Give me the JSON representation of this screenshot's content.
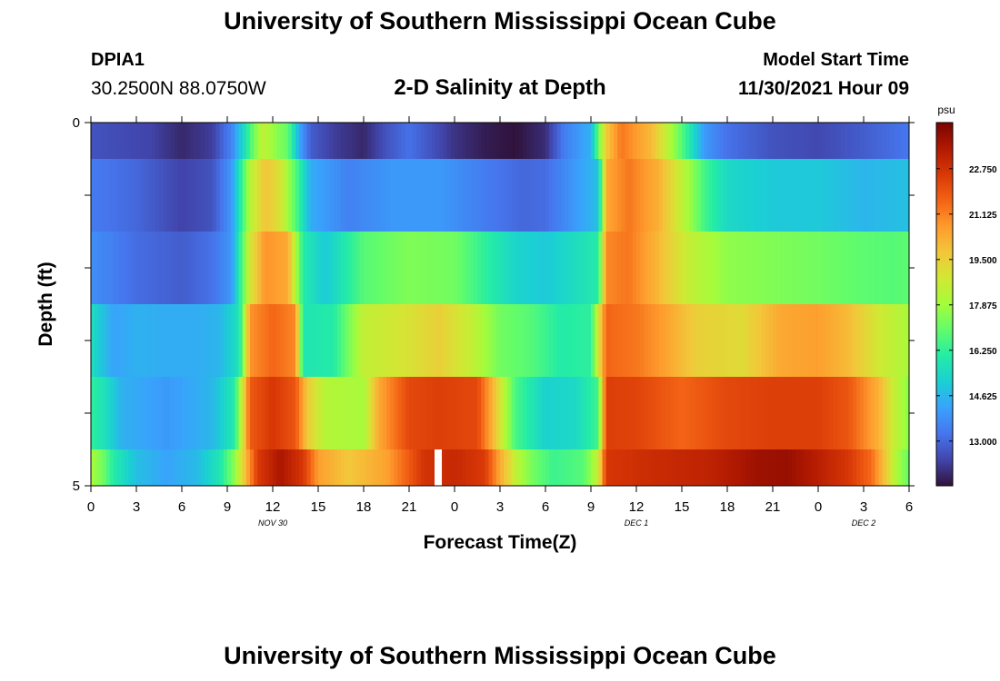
{
  "header": {
    "title": "University of Southern Mississippi Ocean Cube",
    "station": "DPIA1",
    "coords": "30.2500N  88.0750W",
    "subtitle": "2-D Salinity at Depth",
    "model_start_label": "Model Start Time",
    "model_start_value": "11/30/2021 Hour 09"
  },
  "footer": {
    "title": "University of Southern Mississippi Ocean Cube"
  },
  "chart_data": {
    "type": "heatmap",
    "title": "2-D Salinity at Depth",
    "xlabel": "Forecast Time(Z)",
    "ylabel": "Depth (ft)",
    "ylim": [
      0,
      5
    ],
    "y_ticks": [
      "0",
      "5"
    ],
    "x_tick_labels": [
      "0",
      "3",
      "6",
      "9",
      "12",
      "15",
      "18",
      "21",
      "0",
      "3",
      "6",
      "9",
      "12",
      "15",
      "18",
      "21",
      "0",
      "3",
      "6"
    ],
    "date_labels": [
      {
        "text": "NOV 30",
        "hour": 12
      },
      {
        "text": "DEC 1",
        "hour": 36
      },
      {
        "text": "DEC 2",
        "hour": 51
      }
    ],
    "x_range_hours": [
      0,
      54
    ],
    "colorbar": {
      "unit": "psu",
      "min": 11.4,
      "max": 24.4,
      "ticks": [
        "22.750",
        "21.125",
        "19.500",
        "17.875",
        "16.250",
        "14.625",
        "13.000"
      ],
      "colors": [
        "#30123b",
        "#4145ab",
        "#4675ed",
        "#39a2fc",
        "#1bcfd4",
        "#24eca6",
        "#61fc6c",
        "#a4fc3b",
        "#d1e834",
        "#f3c63a",
        "#fe9b2d",
        "#f36315",
        "#d93806",
        "#b11901",
        "#7a0402"
      ]
    },
    "layers": [
      "0 to 0.5 ft",
      "0.5 to 1.5 ft",
      "1.5 to 2.5 ft",
      "2.5 to 3.5 ft",
      "3.5 to 4.5 ft",
      "4.5 to 5 ft"
    ],
    "row_keyframes": [
      [
        [
          0,
          12.6
        ],
        [
          4,
          12.3
        ],
        [
          6,
          11.8
        ],
        [
          8,
          12.2
        ],
        [
          9.3,
          13.6
        ],
        [
          10.5,
          16.5
        ],
        [
          11.3,
          18.5
        ],
        [
          12.2,
          17.6
        ],
        [
          13,
          17.0
        ],
        [
          13.8,
          14.2
        ],
        [
          14.5,
          12.8
        ],
        [
          16,
          12.2
        ],
        [
          18,
          11.8
        ],
        [
          19.5,
          12.6
        ],
        [
          21,
          13.2
        ],
        [
          22.5,
          12.6
        ],
        [
          24,
          12.0
        ],
        [
          26,
          11.6
        ],
        [
          28,
          11.4
        ],
        [
          30,
          11.9
        ],
        [
          31.2,
          13.4
        ],
        [
          33,
          14.5
        ],
        [
          34,
          19.6
        ],
        [
          35,
          21.3
        ],
        [
          37,
          20.0
        ],
        [
          38,
          18.5
        ],
        [
          39.2,
          16.5
        ],
        [
          40.5,
          14.0
        ],
        [
          42,
          13.2
        ],
        [
          45,
          12.6
        ],
        [
          48,
          12.4
        ],
        [
          51,
          12.8
        ],
        [
          54,
          13.3
        ]
      ],
      [
        [
          0,
          13.4
        ],
        [
          3,
          13.0
        ],
        [
          6,
          12.3
        ],
        [
          8,
          12.6
        ],
        [
          9.3,
          14.0
        ],
        [
          10.5,
          18.2
        ],
        [
          11.5,
          19.8
        ],
        [
          12.5,
          19.0
        ],
        [
          13.5,
          16.8
        ],
        [
          14.5,
          14.4
        ],
        [
          17,
          13.5
        ],
        [
          20,
          14.0
        ],
        [
          23,
          14.0
        ],
        [
          26,
          13.4
        ],
        [
          28.5,
          13.0
        ],
        [
          30,
          13.1
        ],
        [
          31.5,
          13.8
        ],
        [
          33.5,
          14.8
        ],
        [
          34,
          20.4
        ],
        [
          35.5,
          21.3
        ],
        [
          37.5,
          20.2
        ],
        [
          39,
          18.5
        ],
        [
          40.5,
          16.5
        ],
        [
          42,
          15.4
        ],
        [
          45,
          15.0
        ],
        [
          48,
          15.0
        ],
        [
          51,
          14.6
        ],
        [
          54,
          14.8
        ]
      ],
      [
        [
          0,
          13.8
        ],
        [
          3,
          13.1
        ],
        [
          6,
          12.8
        ],
        [
          8,
          13.2
        ],
        [
          9.3,
          14.0
        ],
        [
          10.5,
          18.8
        ],
        [
          11.5,
          20.8
        ],
        [
          13,
          20.4
        ],
        [
          14,
          16.0
        ],
        [
          15.5,
          15.0
        ],
        [
          18,
          16.8
        ],
        [
          21,
          17.4
        ],
        [
          24,
          17.2
        ],
        [
          26,
          16.2
        ],
        [
          28,
          15.3
        ],
        [
          30,
          15.0
        ],
        [
          31.5,
          15.4
        ],
        [
          33.5,
          16.0
        ],
        [
          34,
          21.0
        ],
        [
          35.5,
          21.3
        ],
        [
          37.5,
          20.0
        ],
        [
          39.5,
          18.5
        ],
        [
          42,
          17.6
        ],
        [
          45,
          17.4
        ],
        [
          48,
          17.2
        ],
        [
          51,
          16.9
        ],
        [
          53,
          16.8
        ],
        [
          54,
          16.9
        ]
      ],
      [
        [
          0,
          15.6
        ],
        [
          1.5,
          14.2
        ],
        [
          3,
          14.5
        ],
        [
          5,
          14.4
        ],
        [
          7,
          14.4
        ],
        [
          8.5,
          14.6
        ],
        [
          9.8,
          15.7
        ],
        [
          10.5,
          20.8
        ],
        [
          12,
          21.6
        ],
        [
          13.5,
          21.0
        ],
        [
          14,
          15.8
        ],
        [
          16,
          16.0
        ],
        [
          18,
          18.5
        ],
        [
          21,
          19.0
        ],
        [
          23,
          19.5
        ],
        [
          25,
          18.6
        ],
        [
          27,
          17.2
        ],
        [
          29,
          16.8
        ],
        [
          31,
          16.0
        ],
        [
          33,
          16.2
        ],
        [
          34,
          21.6
        ],
        [
          36,
          21.3
        ],
        [
          38,
          20.5
        ],
        [
          40,
          19.5
        ],
        [
          43,
          19.2
        ],
        [
          45.5,
          20.4
        ],
        [
          48,
          20.6
        ],
        [
          50,
          20.0
        ],
        [
          52,
          18.8
        ],
        [
          54,
          18.0
        ]
      ],
      [
        [
          0,
          16.2
        ],
        [
          1,
          15.6
        ],
        [
          2,
          14.5
        ],
        [
          5,
          14.0
        ],
        [
          8,
          14.6
        ],
        [
          9.5,
          16.0
        ],
        [
          10.5,
          21.8
        ],
        [
          12,
          22.6
        ],
        [
          13.5,
          21.9
        ],
        [
          14.3,
          19.6
        ],
        [
          15.5,
          18.2
        ],
        [
          18,
          18.0
        ],
        [
          19,
          20.4
        ],
        [
          21,
          22.2
        ],
        [
          23,
          22.4
        ],
        [
          25.5,
          22.2
        ],
        [
          26.5,
          20.2
        ],
        [
          28,
          16.6
        ],
        [
          30,
          15.2
        ],
        [
          32,
          15.4
        ],
        [
          33.5,
          16.5
        ],
        [
          34,
          22.4
        ],
        [
          36,
          22.3
        ],
        [
          39,
          21.6
        ],
        [
          42,
          22.2
        ],
        [
          45,
          22.4
        ],
        [
          48,
          22.4
        ],
        [
          50,
          21.9
        ],
        [
          52,
          20.2
        ],
        [
          53,
          18.6
        ],
        [
          54,
          17.5
        ]
      ],
      [
        [
          0,
          18.0
        ],
        [
          0.8,
          17.2
        ],
        [
          1.5,
          16.0
        ],
        [
          3,
          14.8
        ],
        [
          5,
          14.2
        ],
        [
          7,
          14.7
        ],
        [
          8.5,
          15.8
        ],
        [
          9.5,
          17.6
        ],
        [
          10.4,
          20.6
        ],
        [
          11,
          22.5
        ],
        [
          12.5,
          23.6
        ],
        [
          14,
          22.6
        ],
        [
          15,
          20.6
        ],
        [
          17,
          19.7
        ],
        [
          19.5,
          20.5
        ],
        [
          22,
          22.7
        ],
        [
          24,
          23.0
        ],
        [
          26,
          22.5
        ],
        [
          27,
          20.4
        ],
        [
          28.2,
          18.2
        ],
        [
          29.2,
          17.2
        ],
        [
          30.5,
          16.4
        ],
        [
          32.5,
          16.8
        ],
        [
          33.5,
          18.6
        ],
        [
          34,
          22.6
        ],
        [
          37,
          22.9
        ],
        [
          41,
          23.2
        ],
        [
          44,
          23.8
        ],
        [
          46,
          23.9
        ],
        [
          48,
          23.3
        ],
        [
          50,
          22.6
        ],
        [
          51.5,
          21.5
        ],
        [
          52.5,
          19.6
        ],
        [
          53.2,
          18.0
        ],
        [
          54,
          17.0
        ]
      ]
    ]
  }
}
